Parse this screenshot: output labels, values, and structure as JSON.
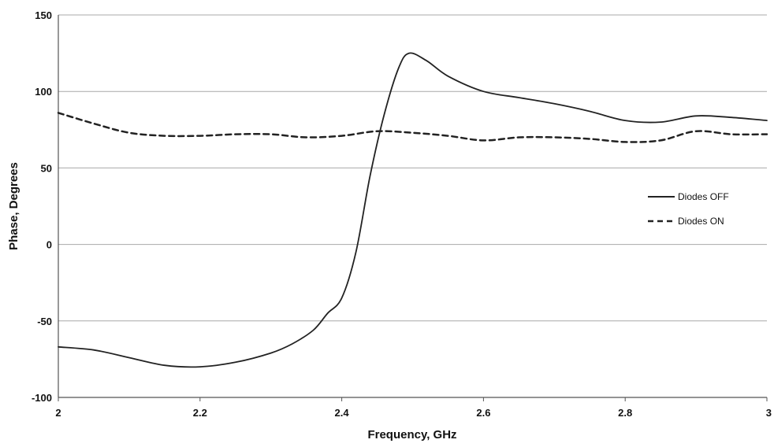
{
  "chart_data": {
    "type": "line",
    "title": "",
    "xlabel": "Frequency, GHz",
    "ylabel": "Phase, Degrees",
    "xlim": [
      2,
      3
    ],
    "ylim": [
      -100,
      150
    ],
    "xticks": [
      2,
      2.2,
      2.4,
      2.6,
      2.8,
      3
    ],
    "xtick_labels": [
      "2",
      "2.2",
      "2.4",
      "2.6",
      "2.8",
      "3"
    ],
    "yticks": [
      -100,
      -50,
      0,
      50,
      100,
      150
    ],
    "ytick_labels": [
      "-100",
      "-50",
      "0",
      "50",
      "100",
      "150"
    ],
    "grid": {
      "horizontal": true,
      "vertical": false
    },
    "legend_position": "right",
    "series": [
      {
        "name": "Diodes OFF",
        "style": "solid",
        "color": "#222222",
        "x": [
          2.0,
          2.05,
          2.1,
          2.15,
          2.2,
          2.25,
          2.3,
          2.33,
          2.36,
          2.38,
          2.4,
          2.42,
          2.44,
          2.46,
          2.48,
          2.495,
          2.52,
          2.55,
          2.6,
          2.65,
          2.7,
          2.75,
          2.8,
          2.85,
          2.9,
          2.95,
          3.0
        ],
        "y": [
          -67,
          -69,
          -74,
          -79,
          -80,
          -77,
          -71,
          -65,
          -56,
          -45,
          -35,
          -5,
          45,
          85,
          115,
          125,
          120,
          110,
          100,
          96,
          92,
          87,
          81,
          80,
          84,
          83,
          81
        ]
      },
      {
        "name": "Diodes ON",
        "style": "dashed",
        "color": "#222222",
        "x": [
          2.0,
          2.05,
          2.1,
          2.15,
          2.2,
          2.25,
          2.3,
          2.35,
          2.4,
          2.45,
          2.5,
          2.55,
          2.6,
          2.65,
          2.7,
          2.75,
          2.8,
          2.85,
          2.9,
          2.95,
          3.0
        ],
        "y": [
          86,
          79,
          73,
          71,
          71,
          72,
          72,
          70,
          71,
          74,
          73,
          71,
          68,
          70,
          70,
          69,
          67,
          68,
          74,
          72,
          72
        ]
      }
    ]
  }
}
